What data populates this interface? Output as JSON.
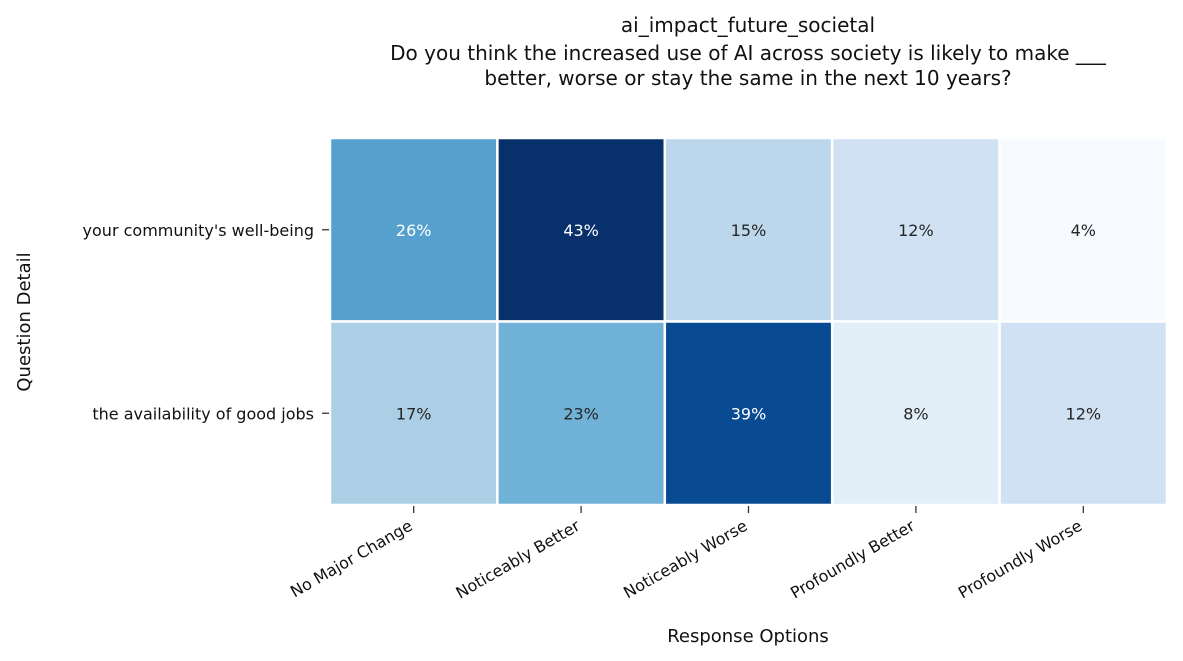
{
  "chart_data": {
    "type": "heatmap",
    "title": "ai_impact_future_societal",
    "subtitle_lines": [
      "Do you think the increased use of AI across society is likely to make  ___",
      "better, worse or stay the same in the next 10 years?"
    ],
    "xlabel": "Response Options",
    "ylabel": "Question Detail",
    "columns": [
      "No Major Change",
      "Noticeably Better",
      "Noticeably Worse",
      "Profoundly Better",
      "Profoundly Worse"
    ],
    "rows": [
      "your community's well-being",
      "the availability of good jobs"
    ],
    "values": [
      [
        26,
        43,
        15,
        12,
        4
      ],
      [
        17,
        23,
        39,
        8,
        12
      ]
    ],
    "value_suffix": "%",
    "colormap": "Blues",
    "color_range": [
      4,
      43
    ],
    "colormap_stops": [
      "#f7fbff",
      "#deebf7",
      "#c6dbef",
      "#9ecae1",
      "#6baed6",
      "#4292c6",
      "#2171b5",
      "#08519c",
      "#08306b"
    ],
    "colorbar": false
  }
}
